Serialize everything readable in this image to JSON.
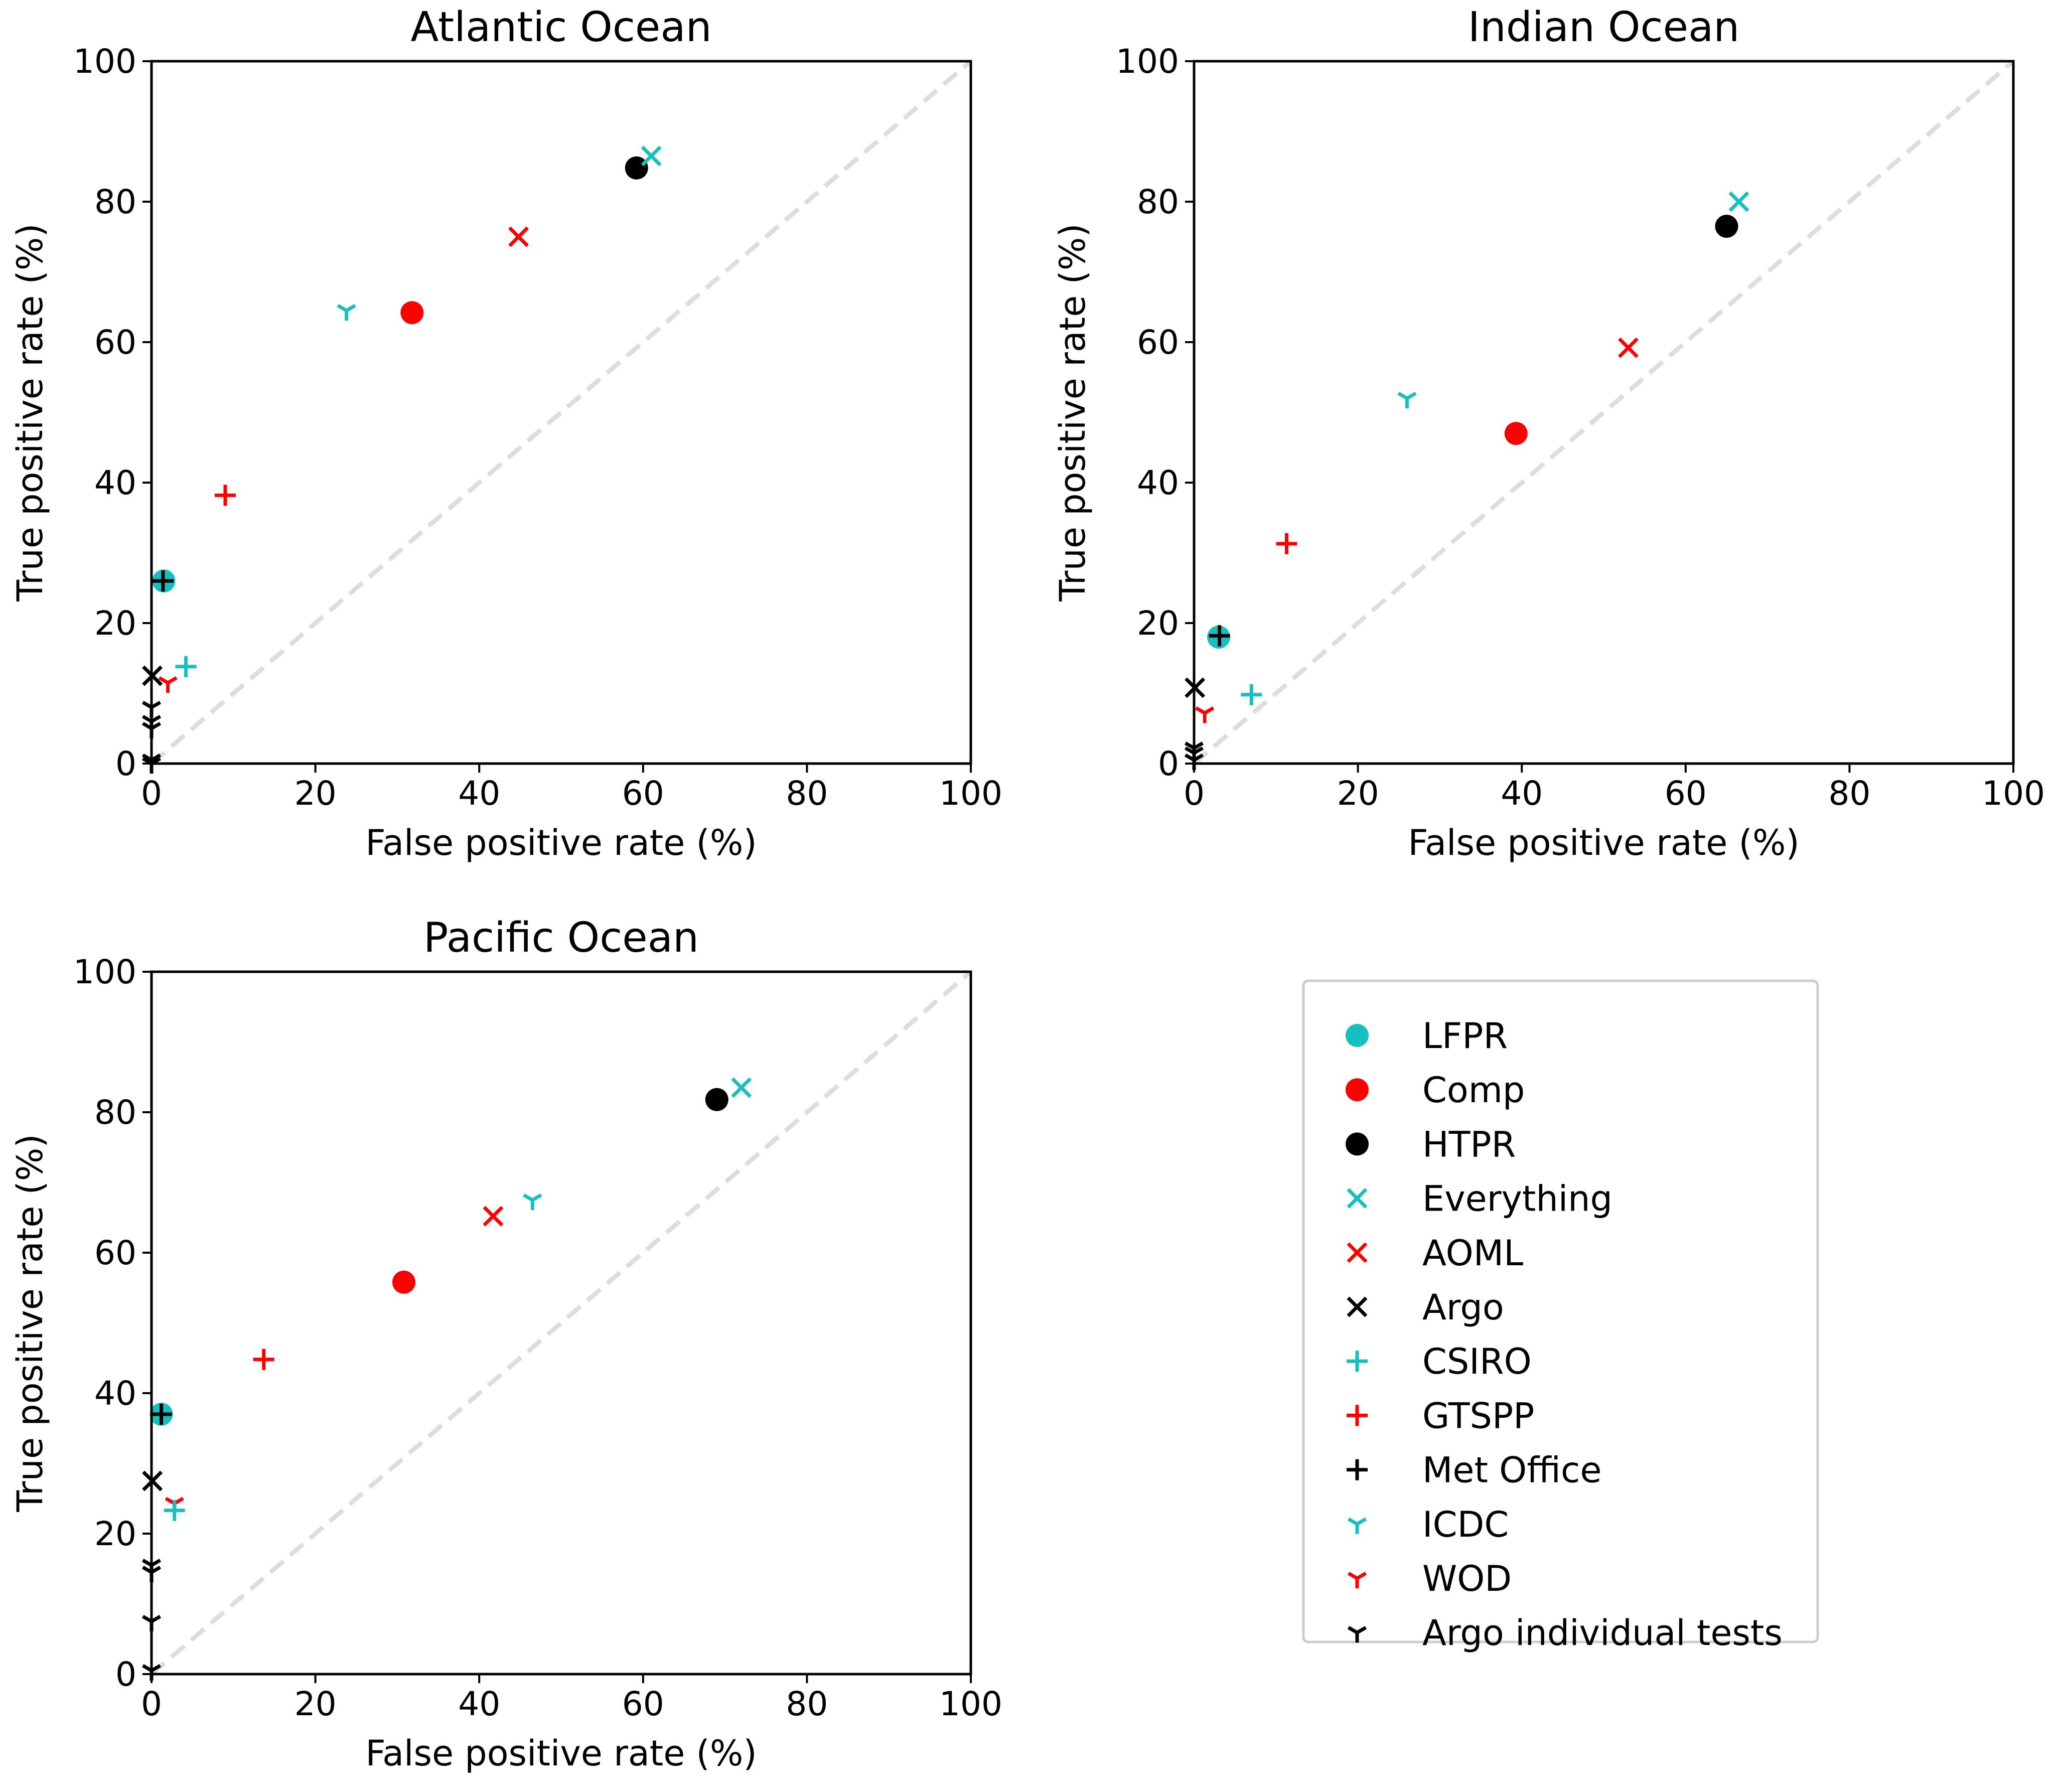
{
  "colors": {
    "cyan": "#17bfbf",
    "red": "#ff0000",
    "black": "#000000",
    "diagonal": "#dddddd",
    "legend_border": "#cccccc"
  },
  "legend": [
    {
      "label": "LFPR",
      "marker": "circle",
      "color": "cyan"
    },
    {
      "label": "Comp",
      "marker": "circle",
      "color": "red"
    },
    {
      "label": "HTPR",
      "marker": "circle",
      "color": "black"
    },
    {
      "label": "Everything",
      "marker": "x",
      "color": "cyan"
    },
    {
      "label": "AOML",
      "marker": "x",
      "color": "red"
    },
    {
      "label": "Argo",
      "marker": "x",
      "color": "black"
    },
    {
      "label": "CSIRO",
      "marker": "plus",
      "color": "cyan"
    },
    {
      "label": "GTSPP",
      "marker": "plus",
      "color": "red"
    },
    {
      "label": "Met Office",
      "marker": "plus",
      "color": "black"
    },
    {
      "label": "ICDC",
      "marker": "tri",
      "color": "cyan"
    },
    {
      "label": "WOD",
      "marker": "tri",
      "color": "red"
    },
    {
      "label": "Argo individual tests",
      "marker": "tri",
      "color": "black"
    }
  ],
  "chart_data": [
    {
      "type": "scatter",
      "title": "Atlantic Ocean",
      "xlabel": "False positive rate (%)",
      "ylabel": "True positive rate (%)",
      "xlim": [
        0,
        100
      ],
      "ylim": [
        0,
        100
      ],
      "xticks": [
        "0",
        "20",
        "40",
        "60",
        "80",
        "100"
      ],
      "yticks": [
        "0",
        "20",
        "40",
        "60",
        "80",
        "100"
      ],
      "series": [
        {
          "name": "LFPR",
          "points": [
            [
              1.5,
              26
            ]
          ]
        },
        {
          "name": "Comp",
          "points": [
            [
              31.8,
              64.2
            ]
          ]
        },
        {
          "name": "HTPR",
          "points": [
            [
              59.2,
              84.8
            ]
          ]
        },
        {
          "name": "Everything",
          "points": [
            [
              61,
              86.5
            ]
          ]
        },
        {
          "name": "AOML",
          "points": [
            [
              44.8,
              75
            ]
          ]
        },
        {
          "name": "Argo",
          "points": [
            [
              0.1,
              12.5
            ]
          ]
        },
        {
          "name": "CSIRO",
          "points": [
            [
              4.2,
              13.8
            ]
          ]
        },
        {
          "name": "GTSPP",
          "points": [
            [
              9,
              38.2
            ]
          ]
        },
        {
          "name": "Met Office",
          "points": [
            [
              1.4,
              26
            ]
          ]
        },
        {
          "name": "ICDC",
          "points": [
            [
              23.8,
              64.5
            ]
          ]
        },
        {
          "name": "WOD",
          "points": [
            [
              2,
              11.5
            ]
          ]
        },
        {
          "name": "Argo individual tests",
          "points": [
            [
              0,
              8
            ],
            [
              0,
              6
            ],
            [
              0,
              5
            ],
            [
              0,
              0.5
            ],
            [
              0,
              0
            ]
          ]
        }
      ]
    },
    {
      "type": "scatter",
      "title": "Indian Ocean",
      "xlabel": "False positive rate (%)",
      "ylabel": "True positive rate (%)",
      "xlim": [
        0,
        100
      ],
      "ylim": [
        0,
        100
      ],
      "xticks": [
        "0",
        "20",
        "40",
        "60",
        "80",
        "100"
      ],
      "yticks": [
        "0",
        "20",
        "40",
        "60",
        "80",
        "100"
      ],
      "series": [
        {
          "name": "LFPR",
          "points": [
            [
              3,
              18
            ]
          ]
        },
        {
          "name": "Comp",
          "points": [
            [
              39.3,
              47
            ]
          ]
        },
        {
          "name": "HTPR",
          "points": [
            [
              65,
              76.5
            ]
          ]
        },
        {
          "name": "Everything",
          "points": [
            [
              66.5,
              80
            ]
          ]
        },
        {
          "name": "AOML",
          "points": [
            [
              53,
              59.2
            ]
          ]
        },
        {
          "name": "Argo",
          "points": [
            [
              0.1,
              10.8
            ]
          ]
        },
        {
          "name": "CSIRO",
          "points": [
            [
              7,
              9.8
            ]
          ]
        },
        {
          "name": "GTSPP",
          "points": [
            [
              11.3,
              31.3
            ]
          ]
        },
        {
          "name": "Met Office",
          "points": [
            [
              3.1,
              18.2
            ]
          ]
        },
        {
          "name": "ICDC",
          "points": [
            [
              26,
              52
            ]
          ]
        },
        {
          "name": "WOD",
          "points": [
            [
              1.3,
              7.2
            ]
          ]
        },
        {
          "name": "Argo individual tests",
          "points": [
            [
              0,
              2.2
            ],
            [
              0,
              1.5
            ],
            [
              0,
              0.5
            ]
          ]
        }
      ]
    },
    {
      "type": "scatter",
      "title": "Pacific Ocean",
      "xlabel": "False positive rate (%)",
      "ylabel": "True positive rate (%)",
      "xlim": [
        0,
        100
      ],
      "ylim": [
        0,
        100
      ],
      "xticks": [
        "0",
        "20",
        "40",
        "60",
        "80",
        "100"
      ],
      "yticks": [
        "0",
        "20",
        "40",
        "60",
        "80",
        "100"
      ],
      "series": [
        {
          "name": "LFPR",
          "points": [
            [
              1.2,
              37
            ]
          ]
        },
        {
          "name": "Comp",
          "points": [
            [
              30.8,
              55.8
            ]
          ]
        },
        {
          "name": "HTPR",
          "points": [
            [
              69,
              81.8
            ]
          ]
        },
        {
          "name": "Everything",
          "points": [
            [
              72,
              83.5
            ]
          ]
        },
        {
          "name": "AOML",
          "points": [
            [
              41.7,
              65.2
            ]
          ]
        },
        {
          "name": "Argo",
          "points": [
            [
              0.1,
              27.5
            ]
          ]
        },
        {
          "name": "CSIRO",
          "points": [
            [
              2.8,
              23.3
            ]
          ]
        },
        {
          "name": "GTSPP",
          "points": [
            [
              13.7,
              44.8
            ]
          ]
        },
        {
          "name": "Met Office",
          "points": [
            [
              1.2,
              37
            ]
          ]
        },
        {
          "name": "ICDC",
          "points": [
            [
              46.5,
              67.5
            ]
          ]
        },
        {
          "name": "WOD",
          "points": [
            [
              2.8,
              24.3
            ]
          ]
        },
        {
          "name": "Argo individual tests",
          "points": [
            [
              0,
              15.5
            ],
            [
              0,
              14.5
            ],
            [
              0,
              7.5
            ],
            [
              0,
              0.5
            ]
          ]
        }
      ]
    }
  ]
}
